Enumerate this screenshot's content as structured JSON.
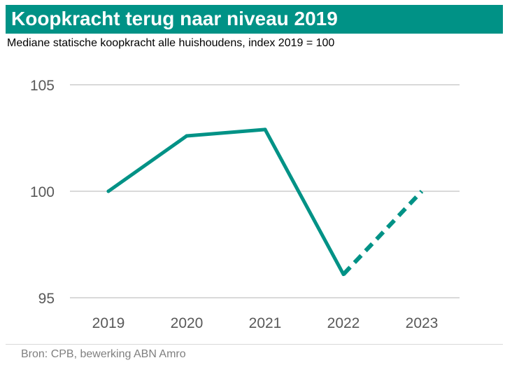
{
  "title": "Koopkracht terug naar niveau 2019",
  "subtitle": "Mediane statische koopkracht alle huishoudens, index 2019 = 100",
  "source": "Bron: CPB, bewerking ABN Amro",
  "colors": {
    "title_bg": "#009286",
    "line": "#009286",
    "grid": "#d9d9d9",
    "tick_text": "#595959"
  },
  "chart_data": {
    "type": "line",
    "title": "Koopkracht terug naar niveau 2019",
    "subtitle": "Mediane statische koopkracht alle huishoudens, index 2019 = 100",
    "x": [
      "2019",
      "2020",
      "2021",
      "2022",
      "2023"
    ],
    "series": [
      {
        "values": [
          100,
          102.6,
          102.9,
          96.1,
          100
        ],
        "style": [
          "solid",
          "solid",
          "solid",
          "solid",
          "dashed"
        ]
      }
    ],
    "yticks": [
      "95",
      "100",
      "105"
    ],
    "ylim": [
      95,
      105
    ],
    "grid": true,
    "legend": "none"
  }
}
